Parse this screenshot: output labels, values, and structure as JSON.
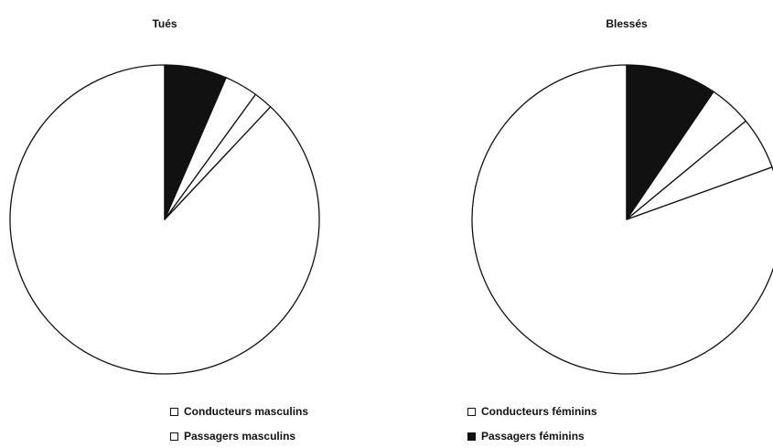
{
  "chart_data": [
    {
      "type": "pie",
      "title": "Tués",
      "legend_position": "bottom",
      "slices": [
        {
          "name": "Conducteurs masculins",
          "value": 88.0,
          "color": "#ffffff"
        },
        {
          "name": "Conducteurs féminins",
          "value": 2.0,
          "color": "#ffffff"
        },
        {
          "name": "Passagers masculins",
          "value": 3.5,
          "color": "#ffffff"
        },
        {
          "name": "Passagers féminins",
          "value": 6.5,
          "color": "#111111"
        }
      ]
    },
    {
      "type": "pie",
      "title": "Blessés",
      "legend_position": "bottom",
      "slices": [
        {
          "name": "Conducteurs masculins",
          "value": 80.5,
          "color": "#ffffff"
        },
        {
          "name": "Conducteurs féminins",
          "value": 5.5,
          "color": "#ffffff"
        },
        {
          "name": "Passagers masculins",
          "value": 4.5,
          "color": "#ffffff"
        },
        {
          "name": "Passagers féminins",
          "value": 9.5,
          "color": "#111111"
        }
      ]
    }
  ],
  "legend": [
    {
      "label": "Conducteurs masculins",
      "color": "#ffffff"
    },
    {
      "label": "Passagers masculins",
      "color": "#ffffff"
    },
    {
      "label": "Conducteurs féminins",
      "color": "#ffffff"
    },
    {
      "label": "Passagers féminins",
      "color": "#111111"
    }
  ]
}
